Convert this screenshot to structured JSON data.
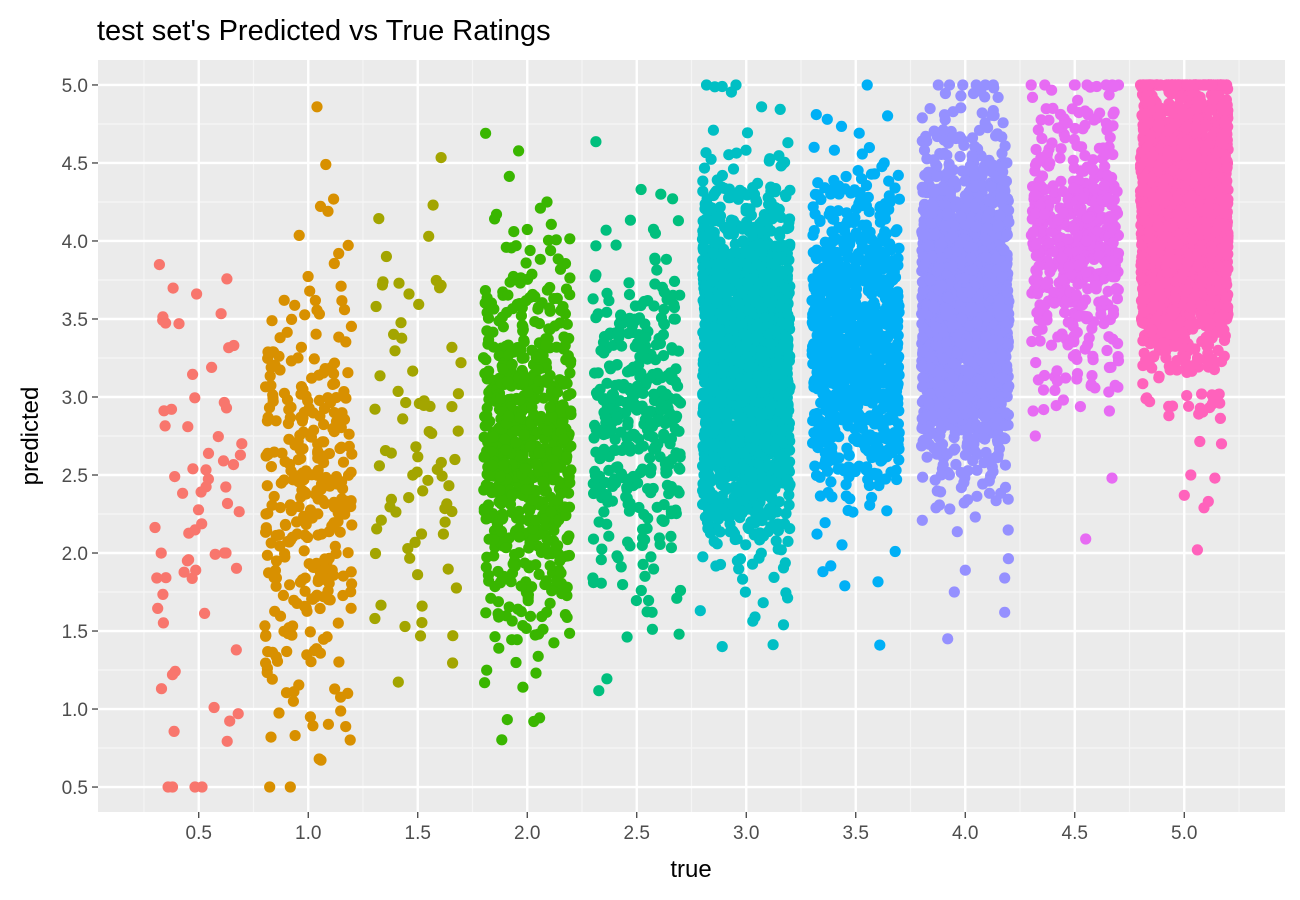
{
  "chart_data": {
    "type": "scatter",
    "title": "test set's Predicted vs True Ratings",
    "xlabel": "true",
    "ylabel": "predicted",
    "xlim": [
      0.04,
      5.46
    ],
    "ylim": [
      0.34,
      5.16
    ],
    "x_ticks": [
      "0.5",
      "1.0",
      "1.5",
      "2.0",
      "2.5",
      "3.0",
      "3.5",
      "4.0",
      "4.5",
      "5.0"
    ],
    "y_ticks": [
      "0.5",
      "1.0",
      "1.5",
      "2.0",
      "2.5",
      "3.0",
      "3.5",
      "4.0",
      "4.5",
      "5.0"
    ],
    "grid": true,
    "legend": "none",
    "jitter_width": 0.2,
    "series": [
      {
        "x": 0.5,
        "color": "#F8766D",
        "count": 60,
        "center": 2.25,
        "spread": 0.75,
        "points": [
          [
            0.38,
            0.5
          ],
          [
            0.36,
            0.5
          ],
          [
            0.33,
            1.13
          ],
          [
            0.41,
            3.47
          ],
          [
            0.49,
            3.66
          ],
          [
            0.66,
            3.33
          ],
          [
            0.57,
            1.01
          ],
          [
            0.68,
            0.97
          ],
          [
            0.38,
            1.22
          ],
          [
            0.39,
            2.49
          ]
        ]
      },
      {
        "x": 1.0,
        "color": "#D89000",
        "count": 320,
        "center": 2.4,
        "spread": 0.65,
        "points": [
          [
            1.04,
            4.86
          ],
          [
            1.08,
            4.49
          ],
          [
            1.09,
            4.19
          ],
          [
            1.05,
            0.68
          ],
          [
            0.83,
            0.82
          ],
          [
            0.94,
            0.83
          ],
          [
            0.89,
            3.62
          ],
          [
            1.18,
            1.1
          ],
          [
            1.15,
            3.71
          ]
        ]
      },
      {
        "x": 1.5,
        "color": "#A3A500",
        "count": 70,
        "center": 2.55,
        "spread": 0.7,
        "points": [
          [
            1.57,
            4.23
          ],
          [
            1.55,
            4.03
          ],
          [
            1.31,
            3.58
          ],
          [
            1.46,
            3.66
          ],
          [
            1.66,
            1.47
          ],
          [
            1.52,
            1.66
          ],
          [
            1.6,
            3.7
          ]
        ]
      },
      {
        "x": 2.0,
        "color": "#39B600",
        "count": 700,
        "center": 2.7,
        "spread": 0.58,
        "points": [
          [
            1.81,
            4.69
          ],
          [
            2.03,
            0.92
          ],
          [
            2.04,
            1.23
          ],
          [
            1.98,
            1.14
          ],
          [
            1.87,
            1.39
          ],
          [
            2.09,
            4.25
          ],
          [
            2.06,
            4.21
          ]
        ]
      },
      {
        "x": 2.5,
        "color": "#00BF7D",
        "count": 360,
        "center": 2.85,
        "spread": 0.5,
        "points": [
          [
            2.52,
            4.33
          ],
          [
            2.61,
            4.3
          ],
          [
            2.57,
            1.62
          ],
          [
            2.3,
            1.84
          ],
          [
            2.69,
            4.13
          ],
          [
            2.7,
            1.76
          ]
        ]
      },
      {
        "x": 3.0,
        "color": "#00BFC4",
        "count": 2200,
        "center": 3.2,
        "spread": 0.52,
        "points": [
          [
            2.89,
            4.99
          ],
          [
            3.07,
            4.86
          ],
          [
            2.89,
            1.4
          ],
          [
            3.17,
            1.54
          ],
          [
            3.04,
            1.59
          ],
          [
            3.19,
            4.63
          ],
          [
            2.79,
            1.63
          ],
          [
            2.85,
            4.71
          ]
        ]
      },
      {
        "x": 3.5,
        "color": "#00B0F6",
        "count": 900,
        "center": 3.4,
        "spread": 0.5,
        "points": [
          [
            3.32,
            4.81
          ],
          [
            3.37,
            4.78
          ],
          [
            3.61,
            1.41
          ],
          [
            3.45,
            1.79
          ],
          [
            3.35,
            1.88
          ],
          [
            3.68,
            2.01
          ],
          [
            3.63,
            4.5
          ]
        ]
      },
      {
        "x": 4.0,
        "color": "#9590FF",
        "count": 1900,
        "center": 3.6,
        "spread": 0.5,
        "points": [
          [
            4.07,
            4.96
          ],
          [
            3.98,
            4.93
          ],
          [
            4.15,
            4.92
          ],
          [
            3.92,
            1.45
          ],
          [
            4.18,
            1.62
          ],
          [
            3.95,
            1.75
          ],
          [
            4.18,
            1.84
          ],
          [
            4.0,
            1.89
          ]
        ]
      },
      {
        "x": 4.5,
        "color": "#E76BF3",
        "count": 500,
        "center": 4.0,
        "spread": 0.45,
        "points": [
          [
            4.6,
            4.99
          ],
          [
            4.68,
            4.99
          ],
          [
            4.55,
            2.09
          ],
          [
            4.67,
            2.48
          ],
          [
            4.32,
            2.75
          ],
          [
            4.4,
            4.85
          ],
          [
            4.31,
            2.91
          ]
        ]
      },
      {
        "x": 5.0,
        "color": "#FF62BC",
        "count": 2600,
        "center": 4.2,
        "spread": 0.45,
        "points": [
          [
            5.06,
            2.02
          ],
          [
            5.09,
            2.29
          ],
          [
            5.11,
            2.33
          ],
          [
            5.0,
            2.37
          ],
          [
            5.03,
            2.5
          ],
          [
            5.14,
            2.48
          ],
          [
            5.17,
            2.7
          ],
          [
            4.93,
            2.88
          ]
        ]
      }
    ]
  }
}
